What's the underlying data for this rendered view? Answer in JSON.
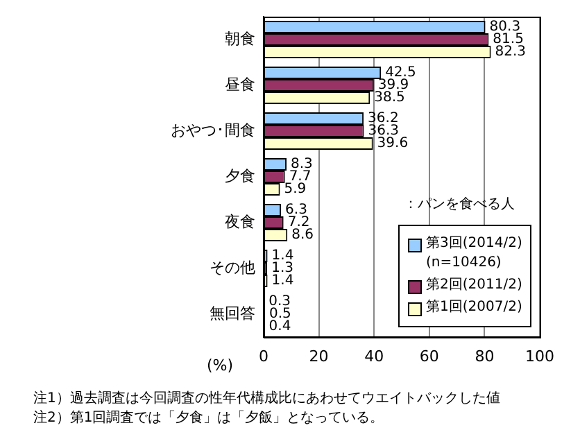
{
  "chart_data": {
    "type": "bar",
    "orientation": "horizontal",
    "categories": [
      "朝食",
      "昼食",
      "おやつ･間食",
      "夕食",
      "夜食",
      "その他",
      "無回答"
    ],
    "series": [
      {
        "name": "第3回(2014/2)\n(n=10426)",
        "color": "#99ccff",
        "values": [
          80.3,
          42.5,
          36.2,
          8.3,
          6.3,
          1.4,
          0.3
        ]
      },
      {
        "name": "第2回(2011/2)",
        "color": "#993366",
        "values": [
          81.5,
          39.9,
          36.3,
          7.7,
          7.2,
          1.3,
          0.5
        ]
      },
      {
        "name": "第1回(2007/2)",
        "color": "#ffffcc",
        "values": [
          82.3,
          38.5,
          39.6,
          5.9,
          8.6,
          1.4,
          0.4
        ]
      }
    ],
    "xlim": [
      0,
      100
    ],
    "xticks": [
      0,
      20,
      40,
      60,
      80,
      100
    ],
    "xlabel": "(%)",
    "grid": "x",
    "legend": "bottom right",
    "data_labels": true,
    "annotations": [
      "：パンを食べる人",
      "注1）過去調査は今回調査の性年代構成比にあわせてウエイトバックした値",
      "注2）第1回調査では「夕食」は「夕飯」となっている。"
    ]
  }
}
